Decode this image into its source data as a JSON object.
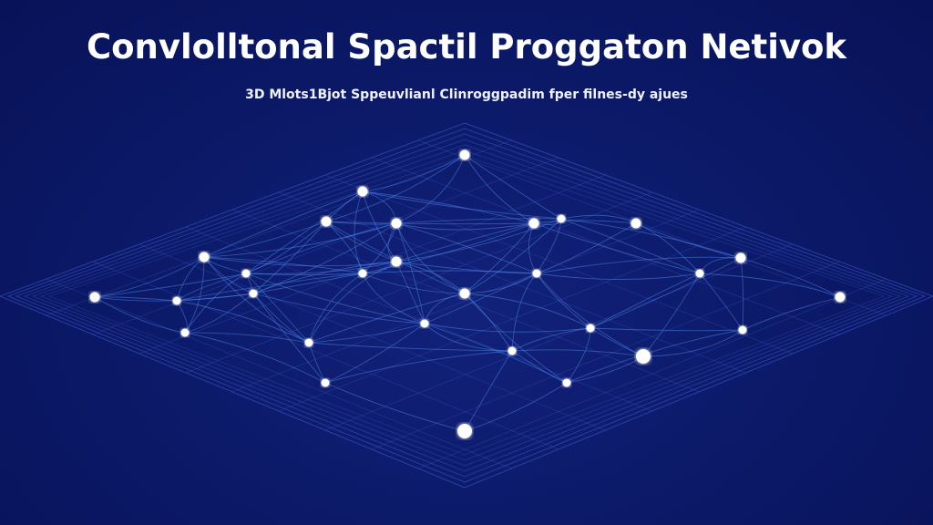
{
  "header": {
    "title": "Convlolltonal Spactil Proggaton Netivok",
    "subtitle": "3D Mlots1Bjot Sppeuvlianl Clinroggpadim fper filnes-dy ajues"
  },
  "colors": {
    "background": "#0c1a6a",
    "grid_lines": "#3f5fd8",
    "node_stems": "#7fe6ff",
    "nodes": "#ffffff"
  }
}
